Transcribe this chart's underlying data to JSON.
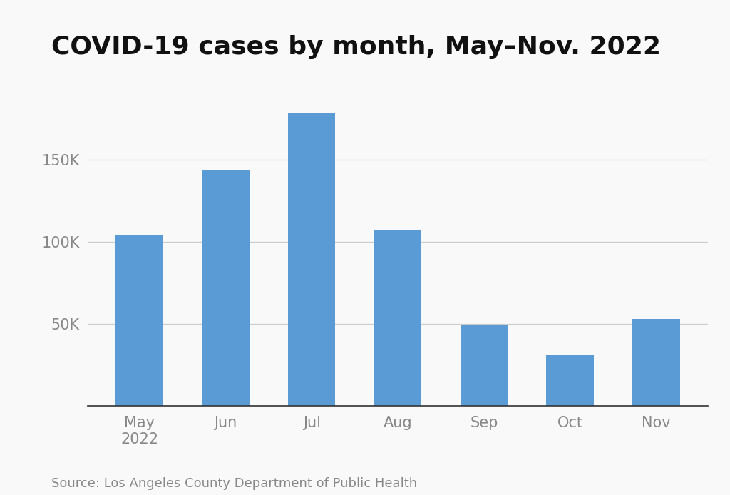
{
  "title": "COVID-19 cases by month, May–Nov. 2022",
  "categories": [
    "May\n2022",
    "Jun",
    "Jul",
    "Aug",
    "Sep",
    "Oct",
    "Nov"
  ],
  "values": [
    104000,
    144000,
    178000,
    107000,
    49000,
    31000,
    53000
  ],
  "bar_color": "#5b9bd5",
  "background_color": "#f9f9f9",
  "ytick_labels": [
    "50K",
    "100K",
    "150K"
  ],
  "ytick_values": [
    50000,
    100000,
    150000
  ],
  "ylim": [
    0,
    193000
  ],
  "source_text": "Source: Los Angeles County Department of Public Health",
  "title_fontsize": 26,
  "tick_fontsize": 15,
  "source_fontsize": 13,
  "grid_color": "#cccccc",
  "tick_label_color": "#888888",
  "source_color": "#888888",
  "spine_color": "#333333",
  "bar_width": 0.55
}
